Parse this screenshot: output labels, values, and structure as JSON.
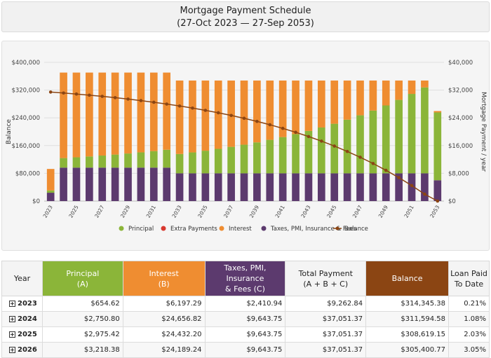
{
  "header": {
    "title": "Mortgage Payment Schedule",
    "subtitle": "(27-Oct 2023 — 27-Sep 2053)"
  },
  "colors": {
    "principal": "#8bb539",
    "extra": "#d8382f",
    "interest": "#ef8d31",
    "taxes": "#5c3a6e",
    "balance": "#8b4513"
  },
  "chart_data": {
    "type": "bar",
    "stacked": true,
    "x": [
      2023,
      2024,
      2025,
      2026,
      2027,
      2028,
      2029,
      2030,
      2031,
      2032,
      2033,
      2034,
      2035,
      2036,
      2037,
      2038,
      2039,
      2040,
      2041,
      2042,
      2043,
      2044,
      2045,
      2046,
      2047,
      2048,
      2049,
      2050,
      2051,
      2052,
      2053
    ],
    "xticks": [
      "2023",
      "2025",
      "2027",
      "2029",
      "2031",
      "2033",
      "2035",
      "2037",
      "2039",
      "2041",
      "2043",
      "2045",
      "2047",
      "2049",
      "2051",
      "2053"
    ],
    "series": [
      {
        "name": "Principal",
        "axis": "right",
        "color": "#8bb539",
        "values": [
          654.62,
          2750.8,
          2975.42,
          3218.38,
          3481.18,
          3765.43,
          4072.9,
          4405.47,
          4765.2,
          5154.3,
          5575.19,
          6030.43,
          6522.84,
          7055.46,
          7631.58,
          8254.75,
          8928.79,
          9657.88,
          10446.51,
          11299.53,
          12222.2,
          13220.21,
          14299.72,
          15467.38,
          16730.39,
          18096.52,
          19574.2,
          21172.55,
          22901.41,
          24771.48,
          19560.0
        ]
      },
      {
        "name": "Extra Payments",
        "axis": "right",
        "color": "#d8382f",
        "values": [
          0,
          0,
          0,
          0,
          0,
          0,
          0,
          0,
          0,
          0,
          0,
          0,
          0,
          0,
          0,
          0,
          0,
          0,
          0,
          0,
          0,
          0,
          0,
          0,
          0,
          0,
          0,
          0,
          0,
          0,
          0
        ]
      },
      {
        "name": "Interest",
        "axis": "right",
        "color": "#ef8d31",
        "values": [
          6197.29,
          24656.82,
          24432.2,
          24189.24,
          23926.44,
          23642.19,
          23334.72,
          23002.15,
          22642.42,
          22253.32,
          21182.56,
          20727.32,
          20234.91,
          19702.29,
          19126.17,
          18503.0,
          17828.96,
          17099.87,
          16311.24,
          15458.22,
          14535.55,
          13537.54,
          12458.03,
          11290.37,
          10027.36,
          8661.23,
          7183.55,
          5585.2,
          3856.34,
          1986.27,
          400.0
        ]
      },
      {
        "name": "Taxes, PMI, Insurance & Fees",
        "axis": "right",
        "color": "#5c3a6e",
        "values": [
          2410.94,
          9643.75,
          9643.75,
          9643.75,
          9643.75,
          9643.75,
          9643.75,
          9643.75,
          9643.75,
          9643.75,
          8000,
          8000,
          8000,
          8000,
          8000,
          8000,
          8000,
          8000,
          8000,
          8000,
          8000,
          8000,
          8000,
          8000,
          8000,
          8000,
          8000,
          8000,
          8000,
          8000,
          6000
        ]
      }
    ],
    "balance": {
      "name": "Balance",
      "axis": "left",
      "color": "#8b4513",
      "values": [
        314345.38,
        311594.58,
        308619.15,
        305400.77,
        301919.59,
        298154.16,
        294081.26,
        289675.79,
        284910.59,
        279756.29,
        274181.1,
        268150.67,
        261627.83,
        254572.37,
        246940.79,
        238686.04,
        229757.25,
        220099.37,
        209652.86,
        198353.33,
        186131.13,
        172910.92,
        158611.2,
        143143.82,
        126413.43,
        108316.91,
        88742.71,
        67570.16,
        44668.75,
        19897.27,
        0
      ]
    },
    "ylabel_left": "Balance",
    "ylabel_right": "Mortgage Payment / year",
    "ylim_left": [
      0,
      400000
    ],
    "ylim_right": [
      0,
      40000
    ],
    "yticks_left": [
      "$0",
      "$80,000",
      "$160,000",
      "$240,000",
      "$320,000",
      "$400,000"
    ],
    "yticks_right": [
      "$0",
      "$8,000",
      "$16,000",
      "$24,000",
      "$32,000",
      "$40,000"
    ],
    "grid": true,
    "legend": "bottom-center"
  },
  "legend": [
    {
      "label": "Principal",
      "color": "#8bb539",
      "kind": "dot"
    },
    {
      "label": "Extra Payments",
      "color": "#d8382f",
      "kind": "dot"
    },
    {
      "label": "Interest",
      "color": "#ef8d31",
      "kind": "dot"
    },
    {
      "label": "Taxes, PMI, Insurance & Fees",
      "color": "#5c3a6e",
      "kind": "dot"
    },
    {
      "label": "Balance",
      "color": "#8b4513",
      "kind": "line"
    }
  ],
  "table": {
    "headers": {
      "year": "Year",
      "principal": "Principal",
      "principal_sub": "(A)",
      "interest": "Interest",
      "interest_sub": "(B)",
      "taxes": "Taxes, PMI, Insurance",
      "taxes_sub": "& Fees (C)",
      "total": "Total Payment",
      "total_sub": "(A + B + C)",
      "balance": "Balance",
      "paid": "Loan Paid",
      "paid_sub": "To Date"
    },
    "expand_symbol": "+",
    "rows": [
      {
        "year": "2023",
        "principal": "$654.62",
        "interest": "$6,197.29",
        "taxes": "$2,410.94",
        "total": "$9,262.84",
        "balance": "$314,345.38",
        "paid": "0.21%"
      },
      {
        "year": "2024",
        "principal": "$2,750.80",
        "interest": "$24,656.82",
        "taxes": "$9,643.75",
        "total": "$37,051.37",
        "balance": "$311,594.58",
        "paid": "1.08%"
      },
      {
        "year": "2025",
        "principal": "$2,975.42",
        "interest": "$24,432.20",
        "taxes": "$9,643.75",
        "total": "$37,051.37",
        "balance": "$308,619.15",
        "paid": "2.03%"
      },
      {
        "year": "2026",
        "principal": "$3,218.38",
        "interest": "$24,189.24",
        "taxes": "$9,643.75",
        "total": "$37,051.37",
        "balance": "$305,400.77",
        "paid": "3.05%"
      }
    ]
  }
}
